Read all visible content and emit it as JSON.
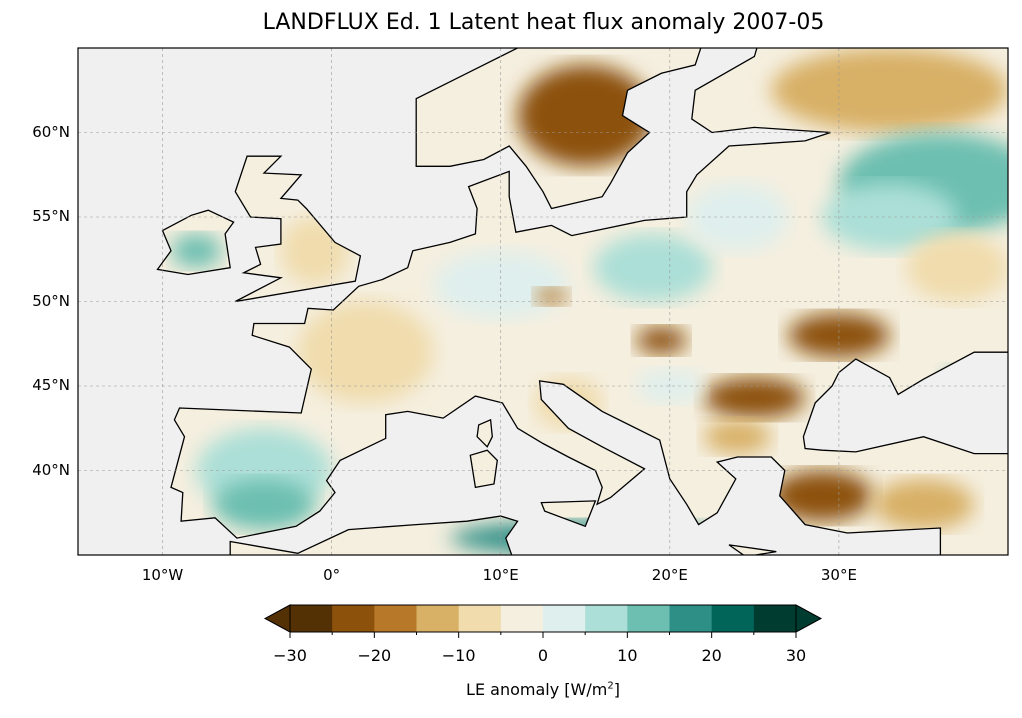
{
  "title": "LANDFLUX Ed. 1 Latent heat flux anomaly 2007-05",
  "map": {
    "lon_range": [
      -15,
      40
    ],
    "lat_range": [
      35,
      65
    ],
    "projection": "PlateCarree",
    "lon_ticks": [
      {
        "v": -10,
        "label": "10°W"
      },
      {
        "v": 0,
        "label": "0°"
      },
      {
        "v": 10,
        "label": "10°E"
      },
      {
        "v": 20,
        "label": "20°E"
      },
      {
        "v": 30,
        "label": "30°E"
      }
    ],
    "lat_ticks": [
      {
        "v": 60,
        "label": "60°N"
      },
      {
        "v": 55,
        "label": "55°N"
      },
      {
        "v": 50,
        "label": "50°N"
      },
      {
        "v": 45,
        "label": "45°N"
      },
      {
        "v": 40,
        "label": "40°N"
      }
    ],
    "ocean_color": "#f0f0f0"
  },
  "colorbar": {
    "label": "LE anomaly [W/m²]",
    "label_main": "LE anomaly [W/m",
    "label_sup": "2",
    "label_end": "]",
    "bounds": [
      -30,
      -25,
      -20,
      -15,
      -10,
      -5,
      0,
      5,
      10,
      15,
      20,
      25,
      30
    ],
    "tick_labels": [
      "−30",
      "−20",
      "−10",
      "0",
      "10",
      "20",
      "30"
    ],
    "colors": [
      "#543005",
      "#8c510a",
      "#b8782a",
      "#d8b066",
      "#f0dcac",
      "#f5efdf",
      "#dfefed",
      "#acdfd7",
      "#6dbfb1",
      "#2e8f86",
      "#016659",
      "#003c30"
    ],
    "extend": "both"
  }
}
